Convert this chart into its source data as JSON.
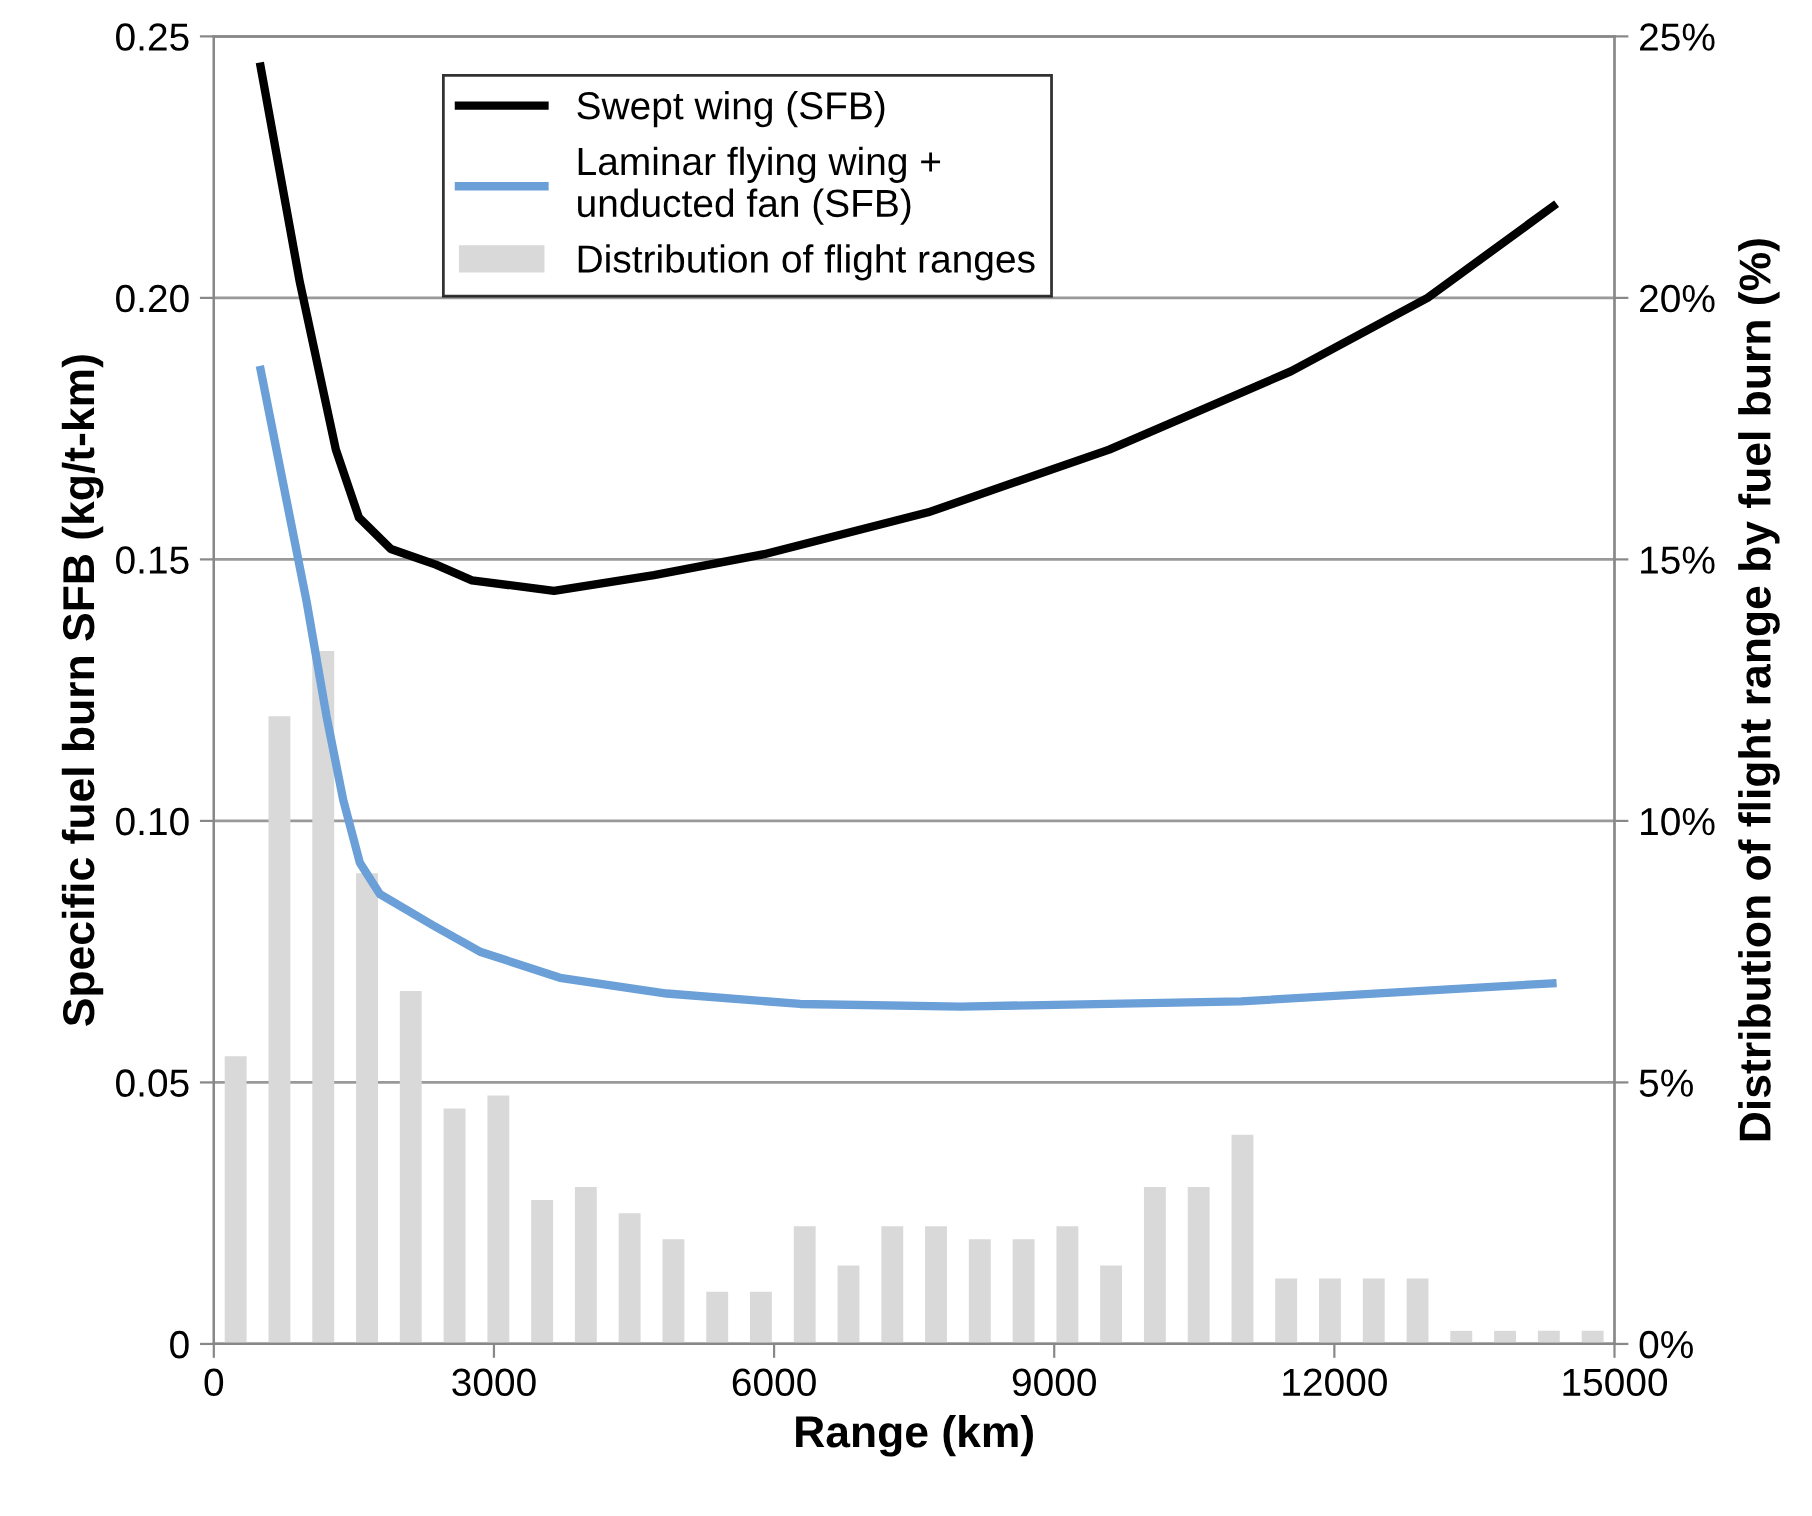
{
  "chart_data": {
    "type": "line",
    "xlabel": "Range (km)",
    "ylabel": "Specific fuel burn SFB (kg/t-km)",
    "y2label": "Distribution of flight range by fuel burn (%)",
    "xlim": [
      0,
      15000
    ],
    "xticks": [
      0,
      3000,
      6000,
      9000,
      12000,
      15000
    ],
    "ylim": [
      0,
      0.25
    ],
    "yticks": [
      {
        "value": 0,
        "label": "0"
      },
      0.05,
      {
        "value": 0.1,
        "label": "0.10"
      },
      0.15,
      {
        "value": 0.2,
        "label": "0.20"
      },
      0.25
    ],
    "y2lim": [
      0,
      25
    ],
    "y2ticks": [
      {
        "value": 0,
        "label": "0%"
      },
      {
        "value": 5,
        "label": "5%"
      },
      {
        "value": 10,
        "label": "10%"
      },
      {
        "value": 15,
        "label": "15%"
      },
      {
        "value": 20,
        "label": "20%"
      },
      {
        "value": 25,
        "label": "25%"
      }
    ],
    "grid": "y",
    "legend": "top left",
    "line_style": "solid",
    "marker": "none",
    "series": [
      {
        "name": "Distribution of flight ranges",
        "type": "bar",
        "axis": "y2",
        "color": "#d9d9d9",
        "x": [
          234,
          703,
          1172,
          1641,
          2109,
          2578,
          3047,
          3516,
          3984,
          4453,
          4922,
          5391,
          5859,
          6328,
          6797,
          7266,
          7734,
          8203,
          8672,
          9141,
          9609,
          10078,
          10547,
          11016,
          11484,
          11953,
          12422,
          12891,
          13359,
          13828,
          14297,
          14766
        ],
        "values": [
          5.5,
          12,
          13.25,
          9,
          6.75,
          4.5,
          4.75,
          2.75,
          3,
          2.5,
          2,
          1,
          1,
          2.25,
          1.5,
          2.25,
          2.25,
          2,
          2,
          2.25,
          1.5,
          3,
          3,
          4,
          1.25,
          1.25,
          1.25,
          1.25,
          0.25,
          0.25,
          0.25,
          0.25
        ]
      },
      {
        "name": "Swept wing (SFB)",
        "color": "#000000",
        "x": [
          493,
          921,
          1307,
          1554,
          1896,
          2378,
          2764,
          3643,
          4714,
          5893,
          7650,
          9589,
          11539,
          12998,
          14380
        ],
        "values": [
          0.245,
          0.203,
          0.171,
          0.158,
          0.152,
          0.149,
          0.146,
          0.144,
          0.147,
          0.151,
          0.159,
          0.171,
          0.186,
          0.2,
          0.218
        ]
      },
      {
        "name": "Laminar flying wing +\nunducted fan (SFB)",
        "color": "#6a9fd8",
        "x": [
          493,
          993,
          1207,
          1386,
          1564,
          1779,
          2350,
          2850,
          3707,
          4850,
          6279,
          8000,
          11000,
          14380
        ],
        "values": [
          0.187,
          0.142,
          0.12,
          0.104,
          0.092,
          0.086,
          0.08,
          0.075,
          0.07,
          0.067,
          0.065,
          0.0645,
          0.0655,
          0.069
        ]
      }
    ]
  }
}
